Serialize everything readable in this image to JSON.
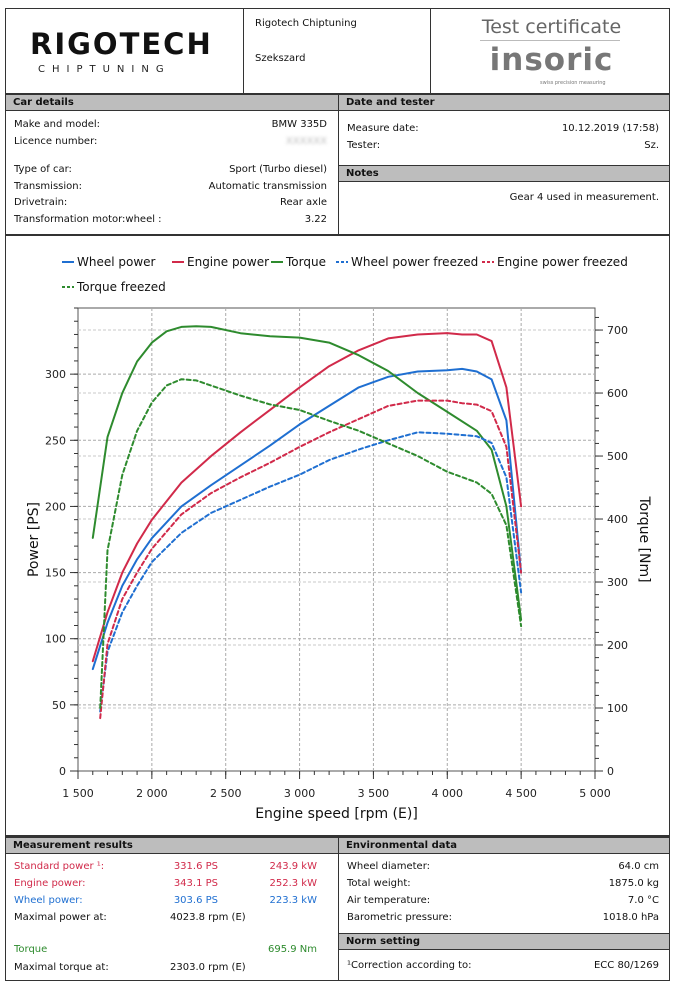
{
  "header": {
    "company": "Rigotech Chiptuning",
    "city": "Szekszard",
    "certificate_title": "Test certificate",
    "logo": {
      "main": "RIGOTECH",
      "sub": "CHIPTUNING"
    },
    "brand_logo": {
      "main": "insoric",
      "sub": "swiss precision measuring"
    }
  },
  "car_details": {
    "title": "Car details",
    "rows": [
      {
        "label": "Make and model:",
        "value": "BMW 335D"
      },
      {
        "label": "Licence number:",
        "value": "XXXXXX"
      },
      {
        "label": "Type of car:",
        "value": "Sport (Turbo diesel)"
      },
      {
        "label": "Transmission:",
        "value": "Automatic transmission"
      },
      {
        "label": "Drivetrain:",
        "value": "Rear axle"
      },
      {
        "label": "Transformation motor:wheel :",
        "value": "3.22"
      }
    ]
  },
  "date_tester": {
    "title": "Date and tester",
    "rows": [
      {
        "label": "Measure date:",
        "value": "10.12.2019 (17:58)"
      },
      {
        "label": "Tester:",
        "value": "Sz."
      }
    ]
  },
  "notes": {
    "title": "Notes",
    "text": "Gear 4 used in measurement."
  },
  "measurement_results": {
    "title": "Measurement results",
    "standard_power": {
      "label": "Standard power ¹:",
      "ps": "331.6 PS",
      "kw": "243.9 kW"
    },
    "engine_power": {
      "label": "Engine power:",
      "ps": "343.1 PS",
      "kw": "252.3 kW"
    },
    "wheel_power": {
      "label": "Wheel power:",
      "ps": "303.6 PS",
      "kw": "223.3 kW"
    },
    "max_power_at": {
      "label": "Maximal power at:",
      "value": "4023.8 rpm (E)"
    },
    "torque": {
      "label": "Torque",
      "value": "695.9 Nm"
    },
    "max_torque_at": {
      "label": "Maximal torque at:",
      "value": "2303.0 rpm (E)"
    }
  },
  "environmental": {
    "title": "Environmental data",
    "rows": [
      {
        "label": "Wheel diameter:",
        "value": "64.0 cm"
      },
      {
        "label": "Total weight:",
        "value": "1875.0 kg"
      },
      {
        "label": "Air temperature:",
        "value": "7.0 °C"
      },
      {
        "label": "Barometric pressure:",
        "value": "1018.0 hPa"
      }
    ]
  },
  "norm": {
    "title": "Norm setting",
    "label": "¹Correction according to:",
    "value": "ECC 80/1269"
  },
  "colors": {
    "blue": "#1f6fd1",
    "red": "#d12a4a",
    "green": "#2e8b2e",
    "header_gray": "#bdbdbd"
  },
  "chart_data": {
    "type": "line",
    "xlabel": "Engine speed [rpm (E)]",
    "ylabel": "Power [PS]",
    "y2label": "Torque [Nm]",
    "xlim": [
      1500,
      5000
    ],
    "ylim": [
      0,
      350
    ],
    "y2lim": [
      0,
      735
    ],
    "x_ticks": [
      1500,
      2000,
      2500,
      3000,
      3500,
      4000,
      4500,
      5000
    ],
    "x_tick_labels": [
      "1 500",
      "2 000",
      "2 500",
      "3 000",
      "3 500",
      "4 000",
      "4 500",
      "5 000"
    ],
    "y_ticks": [
      0,
      50,
      100,
      150,
      200,
      250,
      300
    ],
    "y2_ticks": [
      0,
      100,
      200,
      300,
      400,
      500,
      600,
      700
    ],
    "grid": true,
    "legend_position": "top",
    "series": [
      {
        "name": "Wheel power",
        "axis": "left",
        "style": "solid",
        "color": "#1f6fd1",
        "points": [
          [
            1600,
            77
          ],
          [
            1700,
            112
          ],
          [
            1800,
            140
          ],
          [
            1900,
            160
          ],
          [
            2000,
            176
          ],
          [
            2200,
            200
          ],
          [
            2400,
            216
          ],
          [
            2600,
            231
          ],
          [
            2800,
            246
          ],
          [
            3000,
            262
          ],
          [
            3200,
            276
          ],
          [
            3400,
            290
          ],
          [
            3600,
            298
          ],
          [
            3800,
            302
          ],
          [
            4000,
            303
          ],
          [
            4100,
            304
          ],
          [
            4200,
            302
          ],
          [
            4300,
            296
          ],
          [
            4400,
            265
          ],
          [
            4500,
            150
          ]
        ]
      },
      {
        "name": "Engine power",
        "axis": "left",
        "style": "solid",
        "color": "#d12a4a",
        "points": [
          [
            1600,
            83
          ],
          [
            1700,
            120
          ],
          [
            1800,
            150
          ],
          [
            1900,
            172
          ],
          [
            2000,
            190
          ],
          [
            2200,
            218
          ],
          [
            2400,
            238
          ],
          [
            2600,
            256
          ],
          [
            2800,
            273
          ],
          [
            3000,
            290
          ],
          [
            3200,
            306
          ],
          [
            3400,
            318
          ],
          [
            3600,
            327
          ],
          [
            3800,
            330
          ],
          [
            4000,
            331
          ],
          [
            4100,
            330
          ],
          [
            4200,
            330
          ],
          [
            4300,
            325
          ],
          [
            4400,
            290
          ],
          [
            4500,
            200
          ]
        ]
      },
      {
        "name": "Torque",
        "axis": "right",
        "style": "solid",
        "color": "#2e8b2e",
        "points": [
          [
            1600,
            370
          ],
          [
            1700,
            530
          ],
          [
            1800,
            600
          ],
          [
            1900,
            650
          ],
          [
            2000,
            680
          ],
          [
            2100,
            698
          ],
          [
            2200,
            705
          ],
          [
            2300,
            706
          ],
          [
            2400,
            705
          ],
          [
            2600,
            695
          ],
          [
            2800,
            690
          ],
          [
            3000,
            688
          ],
          [
            3200,
            680
          ],
          [
            3400,
            660
          ],
          [
            3600,
            635
          ],
          [
            3800,
            600
          ],
          [
            4000,
            570
          ],
          [
            4200,
            540
          ],
          [
            4300,
            510
          ],
          [
            4400,
            420
          ],
          [
            4500,
            240
          ]
        ]
      },
      {
        "name": "Wheel power freezed",
        "axis": "left",
        "style": "dashed",
        "color": "#1f6fd1",
        "points": [
          [
            1650,
            45
          ],
          [
            1700,
            90
          ],
          [
            1800,
            120
          ],
          [
            1900,
            140
          ],
          [
            2000,
            158
          ],
          [
            2200,
            180
          ],
          [
            2400,
            195
          ],
          [
            2600,
            205
          ],
          [
            2800,
            215
          ],
          [
            3000,
            224
          ],
          [
            3200,
            235
          ],
          [
            3400,
            243
          ],
          [
            3600,
            250
          ],
          [
            3800,
            256
          ],
          [
            4000,
            255
          ],
          [
            4100,
            254
          ],
          [
            4200,
            253
          ],
          [
            4300,
            248
          ],
          [
            4400,
            222
          ],
          [
            4500,
            135
          ]
        ]
      },
      {
        "name": "Engine power freezed",
        "axis": "left",
        "style": "dashed",
        "color": "#d12a4a",
        "points": [
          [
            1650,
            40
          ],
          [
            1700,
            96
          ],
          [
            1800,
            130
          ],
          [
            1900,
            150
          ],
          [
            2000,
            168
          ],
          [
            2200,
            194
          ],
          [
            2400,
            210
          ],
          [
            2600,
            222
          ],
          [
            2800,
            233
          ],
          [
            3000,
            245
          ],
          [
            3200,
            256
          ],
          [
            3400,
            266
          ],
          [
            3600,
            276
          ],
          [
            3800,
            280
          ],
          [
            4000,
            280
          ],
          [
            4100,
            278
          ],
          [
            4200,
            277
          ],
          [
            4300,
            272
          ],
          [
            4400,
            245
          ],
          [
            4500,
            150
          ]
        ]
      },
      {
        "name": "Torque freezed",
        "axis": "right",
        "style": "dashed",
        "color": "#2e8b2e",
        "points": [
          [
            1650,
            100
          ],
          [
            1700,
            350
          ],
          [
            1800,
            470
          ],
          [
            1900,
            540
          ],
          [
            2000,
            585
          ],
          [
            2100,
            612
          ],
          [
            2200,
            622
          ],
          [
            2300,
            620
          ],
          [
            2400,
            612
          ],
          [
            2600,
            596
          ],
          [
            2800,
            582
          ],
          [
            3000,
            573
          ],
          [
            3200,
            556
          ],
          [
            3400,
            540
          ],
          [
            3600,
            520
          ],
          [
            3800,
            500
          ],
          [
            4000,
            475
          ],
          [
            4200,
            458
          ],
          [
            4300,
            440
          ],
          [
            4400,
            390
          ],
          [
            4500,
            230
          ]
        ]
      }
    ]
  }
}
